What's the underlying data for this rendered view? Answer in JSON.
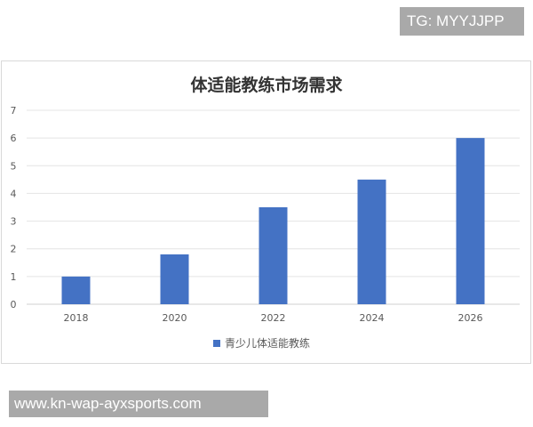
{
  "watermarks": {
    "top": "TG: MYYJJPP",
    "bottom": "www.kn-wap-ayxsports.com"
  },
  "chart_data": {
    "type": "bar",
    "title": "体适能教练市场需求",
    "categories": [
      "2018",
      "2020",
      "2022",
      "2024",
      "2026"
    ],
    "series": [
      {
        "name": "青少儿体适能教练",
        "values": [
          1,
          1.8,
          3.5,
          4.5,
          6
        ],
        "color": "#4472c4"
      }
    ],
    "ylim": [
      0,
      7
    ],
    "yticks": [
      0,
      1,
      2,
      3,
      4,
      5,
      6,
      7
    ],
    "xlabel": "",
    "ylabel": "",
    "grid": true,
    "legend": "bottom"
  }
}
